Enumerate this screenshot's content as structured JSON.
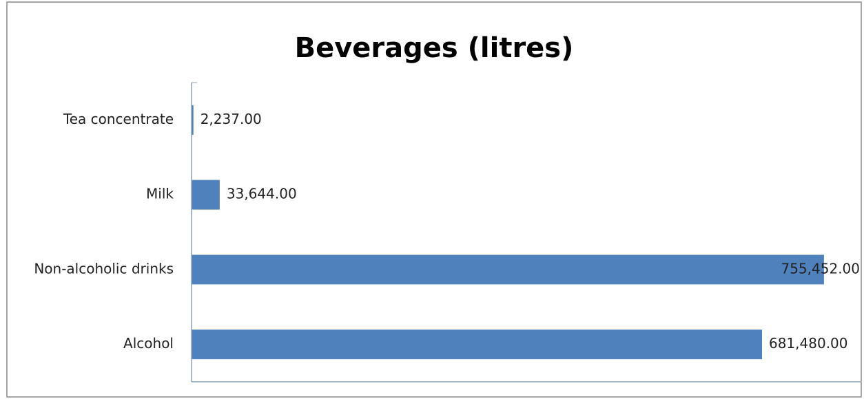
{
  "chart_data": {
    "type": "hbar",
    "title": "Beverages (litres)",
    "categories": [
      "Tea concentrate",
      "Milk",
      "Non-alcoholic drinks",
      "Alcohol"
    ],
    "values": [
      2237,
      33644,
      755452,
      681480
    ],
    "value_labels": [
      "2,237.00",
      "33,644.00",
      "755,452.00",
      "681,480.00"
    ],
    "color": "#4f81bd",
    "xlim": [
      0,
      800000
    ]
  }
}
